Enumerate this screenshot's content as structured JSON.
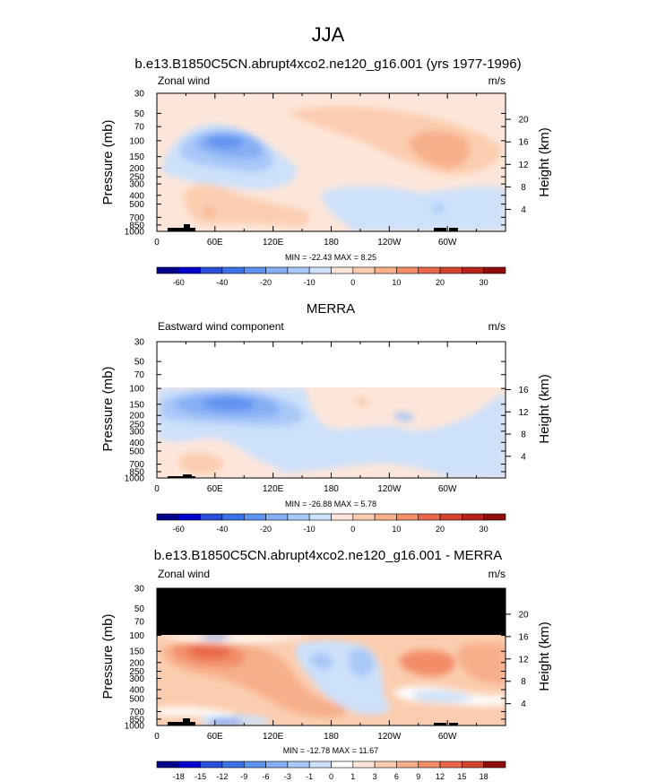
{
  "figure": {
    "title": "JJA"
  },
  "colors": {
    "black": "#000000",
    "panel_bg": "#ffe6d9"
  },
  "chart_data": [
    {
      "type": "heatmap",
      "panel": "model",
      "title": "b.e13.B1850C5CN.abrupt4xco2.ne120_g16.001 (yrs 1977-1996)",
      "left_string": "Zonal wind",
      "right_string": "m/s",
      "ylabel": "Pressure (mb)",
      "ylabel_right": "Height (km)",
      "x_ticks": [
        "0",
        "60E",
        "120E",
        "180",
        "120W",
        "60W"
      ],
      "y_ticks": [
        "30",
        "50",
        "70",
        "100",
        "150",
        "200",
        "250",
        "300",
        "400",
        "500",
        "700",
        "850",
        "1000"
      ],
      "height_ticks": [
        "20",
        "16",
        "12",
        "8",
        "4"
      ],
      "ylim": [
        1000,
        30
      ],
      "xlim": [
        0,
        360
      ],
      "stats": "MIN = -22.43   MAX =  8.25",
      "min": -22.43,
      "max": 8.25,
      "colorbar": {
        "levels": [
          "-60",
          "-40",
          "-20",
          "-10",
          "0",
          "10",
          "20",
          "30"
        ],
        "colors": [
          "#00008b",
          "#0000cd",
          "#2a4fd8",
          "#3d72e6",
          "#5f93f0",
          "#86aef5",
          "#a8c8f8",
          "#cde1fb",
          "#fde6d9",
          "#fbcdb0",
          "#f7af8a",
          "#f28d68",
          "#e8664a",
          "#d24430",
          "#b52219",
          "#8f0d0d"
        ]
      }
    },
    {
      "type": "heatmap",
      "panel": "obs",
      "title": "MERRA",
      "left_string": "Eastward wind component",
      "right_string": "m/s",
      "ylabel": "Pressure (mb)",
      "ylabel_right": "Height (km)",
      "x_ticks": [
        "0",
        "60E",
        "120E",
        "180",
        "120W",
        "60W"
      ],
      "y_ticks": [
        "30",
        "50",
        "70",
        "100",
        "150",
        "200",
        "250",
        "300",
        "400",
        "500",
        "700",
        "850",
        "1000"
      ],
      "height_ticks": [
        "16",
        "12",
        "8",
        "4"
      ],
      "ylim": [
        1000,
        30
      ],
      "xlim": [
        0,
        360
      ],
      "stats": "MIN = -26.88   MAX =  5.78",
      "min": -26.88,
      "max": 5.78,
      "colorbar": {
        "levels": [
          "-60",
          "-40",
          "-20",
          "-10",
          "0",
          "10",
          "20",
          "30"
        ],
        "colors": [
          "#00008b",
          "#0000cd",
          "#2a4fd8",
          "#3d72e6",
          "#5f93f0",
          "#86aef5",
          "#a8c8f8",
          "#cde1fb",
          "#fde6d9",
          "#fbcdb0",
          "#f7af8a",
          "#f28d68",
          "#e8664a",
          "#d24430",
          "#b52219",
          "#8f0d0d"
        ]
      }
    },
    {
      "type": "heatmap",
      "panel": "difference",
      "title": "b.e13.B1850C5CN.abrupt4xco2.ne120_g16.001 - MERRA",
      "left_string": "Zonal wind",
      "right_string": "m/s",
      "ylabel": "Pressure (mb)",
      "ylabel_right": "Height (km)",
      "x_ticks": [
        "0",
        "60E",
        "120E",
        "180",
        "120W",
        "60W"
      ],
      "y_ticks": [
        "30",
        "50",
        "70",
        "100",
        "150",
        "200",
        "250",
        "300",
        "400",
        "500",
        "700",
        "850",
        "1000"
      ],
      "height_ticks": [
        "20",
        "16",
        "12",
        "8",
        "4"
      ],
      "ylim": [
        1000,
        30
      ],
      "xlim": [
        0,
        360
      ],
      "stats": "MIN = -12.78   MAX =  11.67",
      "min": -12.78,
      "max": 11.67,
      "colorbar": {
        "levels": [
          "-18",
          "-15",
          "-12",
          "-9",
          "-6",
          "-3",
          "-1",
          "0",
          "1",
          "3",
          "6",
          "9",
          "12",
          "15",
          "18"
        ],
        "colors": [
          "#00008b",
          "#0000cd",
          "#2a4fd8",
          "#3d72e6",
          "#5f93f0",
          "#86aef5",
          "#a8c8f8",
          "#cde1fb",
          "#ffffff",
          "#fde6d9",
          "#fbcdb0",
          "#f7af8a",
          "#f28d68",
          "#e8664a",
          "#d24430",
          "#8f0d0d"
        ]
      }
    }
  ]
}
